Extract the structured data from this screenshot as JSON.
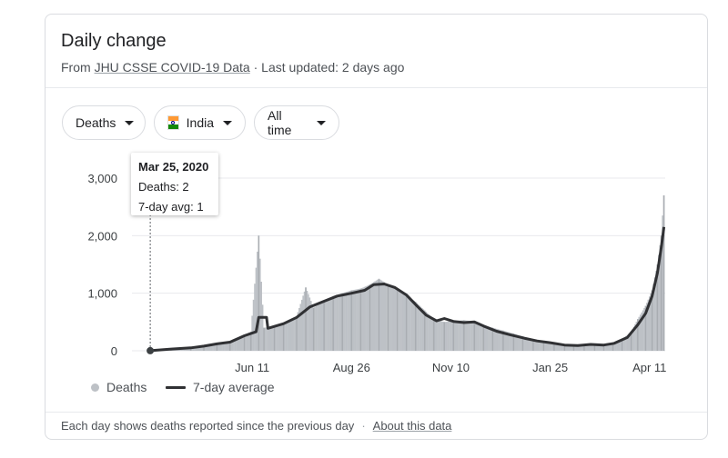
{
  "card": {
    "title": "Daily change",
    "subtitle_prefix": "From ",
    "source_link": "JHU CSSE COVID-19 Data",
    "subtitle_suffix": " · Last updated: 2 days ago"
  },
  "filters": {
    "metric": "Deaths",
    "country": "India",
    "range": "All time"
  },
  "colors": {
    "bars": "#bdc1c6",
    "avg_line": "#303134",
    "grid": "#e8eaed",
    "flag_saffron": "#ff9933",
    "flag_white": "#ffffff",
    "flag_green": "#138808"
  },
  "tooltip": {
    "date": "Mar 25, 2020",
    "deaths_line": "Deaths: 2",
    "avg_line": "7-day avg: 1"
  },
  "legend": {
    "bars_label": "Deaths",
    "line_label": "7-day average"
  },
  "footer": {
    "note": "Each day shows deaths reported since the previous day",
    "separator": "·",
    "link": "About this data"
  },
  "chart_data": {
    "type": "bar",
    "x_start": "2020-03-11",
    "x_end": "2021-04-23",
    "ylim": [
      0,
      3000
    ],
    "y_ticks": [
      0,
      1000,
      2000,
      3000
    ],
    "y_tick_labels": [
      "0",
      "1,000",
      "2,000",
      "3,000"
    ],
    "x_ticks": [
      {
        "date": "2020-06-11",
        "label": "Jun 11"
      },
      {
        "date": "2020-08-26",
        "label": "Aug 26"
      },
      {
        "date": "2020-11-10",
        "label": "Nov 10"
      },
      {
        "date": "2021-01-25",
        "label": "Jan 25"
      },
      {
        "date": "2021-04-11",
        "label": "Apr 11"
      }
    ],
    "grid": true,
    "series": [
      {
        "name": "Deaths",
        "kind": "bar",
        "points": [
          [
            "2020-03-25",
            2
          ],
          [
            "2020-04-10",
            40
          ],
          [
            "2020-04-25",
            60
          ],
          [
            "2020-05-05",
            100
          ],
          [
            "2020-05-15",
            120
          ],
          [
            "2020-05-25",
            150
          ],
          [
            "2020-06-05",
            280
          ],
          [
            "2020-06-10",
            330
          ],
          [
            "2020-06-16",
            2000
          ],
          [
            "2020-06-20",
            400
          ],
          [
            "2020-06-28",
            420
          ],
          [
            "2020-07-05",
            480
          ],
          [
            "2020-07-15",
            600
          ],
          [
            "2020-07-22",
            1100
          ],
          [
            "2020-07-28",
            750
          ],
          [
            "2020-08-05",
            870
          ],
          [
            "2020-08-12",
            950
          ],
          [
            "2020-08-19",
            1000
          ],
          [
            "2020-08-26",
            1050
          ],
          [
            "2020-09-02",
            1080
          ],
          [
            "2020-09-09",
            1150
          ],
          [
            "2020-09-16",
            1250
          ],
          [
            "2020-09-23",
            1150
          ],
          [
            "2020-09-30",
            1080
          ],
          [
            "2020-10-07",
            970
          ],
          [
            "2020-10-14",
            850
          ],
          [
            "2020-10-21",
            700
          ],
          [
            "2020-10-28",
            550
          ],
          [
            "2020-11-05",
            500
          ],
          [
            "2020-11-12",
            520
          ],
          [
            "2020-11-20",
            530
          ],
          [
            "2020-11-28",
            510
          ],
          [
            "2020-12-05",
            450
          ],
          [
            "2020-12-12",
            400
          ],
          [
            "2020-12-20",
            350
          ],
          [
            "2020-12-28",
            300
          ],
          [
            "2021-01-04",
            250
          ],
          [
            "2021-01-12",
            180
          ],
          [
            "2021-01-20",
            160
          ],
          [
            "2021-01-28",
            140
          ],
          [
            "2021-02-05",
            110
          ],
          [
            "2021-02-12",
            95
          ],
          [
            "2021-02-20",
            105
          ],
          [
            "2021-02-28",
            115
          ],
          [
            "2021-03-07",
            110
          ],
          [
            "2021-03-14",
            140
          ],
          [
            "2021-03-21",
            200
          ],
          [
            "2021-03-28",
            330
          ],
          [
            "2021-04-02",
            550
          ],
          [
            "2021-04-08",
            780
          ],
          [
            "2021-04-13",
            1050
          ],
          [
            "2021-04-17",
            1500
          ],
          [
            "2021-04-20",
            2000
          ],
          [
            "2021-04-22",
            2700
          ]
        ]
      },
      {
        "name": "7-day average",
        "kind": "line",
        "points": [
          [
            "2020-03-25",
            1
          ],
          [
            "2020-04-10",
            30
          ],
          [
            "2020-04-25",
            50
          ],
          [
            "2020-05-05",
            80
          ],
          [
            "2020-05-15",
            120
          ],
          [
            "2020-05-25",
            150
          ],
          [
            "2020-06-05",
            260
          ],
          [
            "2020-06-14",
            330
          ],
          [
            "2020-06-16",
            580
          ],
          [
            "2020-06-22",
            580
          ],
          [
            "2020-06-23",
            390
          ],
          [
            "2020-07-05",
            470
          ],
          [
            "2020-07-15",
            580
          ],
          [
            "2020-07-25",
            760
          ],
          [
            "2020-08-05",
            860
          ],
          [
            "2020-08-15",
            950
          ],
          [
            "2020-08-26",
            1000
          ],
          [
            "2020-09-05",
            1050
          ],
          [
            "2020-09-12",
            1150
          ],
          [
            "2020-09-20",
            1160
          ],
          [
            "2020-09-28",
            1100
          ],
          [
            "2020-10-07",
            970
          ],
          [
            "2020-10-15",
            780
          ],
          [
            "2020-10-22",
            620
          ],
          [
            "2020-10-30",
            520
          ],
          [
            "2020-11-05",
            560
          ],
          [
            "2020-11-12",
            510
          ],
          [
            "2020-11-20",
            490
          ],
          [
            "2020-11-28",
            500
          ],
          [
            "2020-12-05",
            430
          ],
          [
            "2020-12-15",
            340
          ],
          [
            "2020-12-25",
            280
          ],
          [
            "2021-01-05",
            220
          ],
          [
            "2021-01-15",
            170
          ],
          [
            "2021-01-25",
            140
          ],
          [
            "2021-02-05",
            100
          ],
          [
            "2021-02-15",
            90
          ],
          [
            "2021-02-25",
            110
          ],
          [
            "2021-03-07",
            100
          ],
          [
            "2021-03-15",
            130
          ],
          [
            "2021-03-25",
            230
          ],
          [
            "2021-04-02",
            450
          ],
          [
            "2021-04-08",
            650
          ],
          [
            "2021-04-13",
            950
          ],
          [
            "2021-04-17",
            1350
          ],
          [
            "2021-04-20",
            1800
          ],
          [
            "2021-04-22",
            2150
          ]
        ]
      }
    ]
  }
}
